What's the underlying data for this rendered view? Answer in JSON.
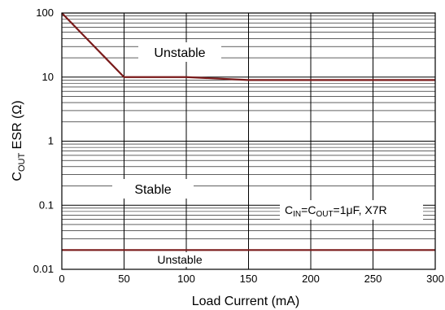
{
  "chart_data": {
    "type": "line",
    "xlabel": "Load Current (mA)",
    "ylabel_main": "C",
    "ylabel_sub": "OUT",
    "ylabel_rest": " ESR (Ω)",
    "x_ticks": [
      "0",
      "50",
      "100",
      "150",
      "200",
      "250",
      "300"
    ],
    "x_tick_values": [
      0,
      50,
      100,
      150,
      200,
      250,
      300
    ],
    "y_ticks": [
      "0.01",
      "0.1",
      "1",
      "10",
      "100"
    ],
    "y_tick_values": [
      0.01,
      0.1,
      1,
      10,
      100
    ],
    "xlim": [
      0,
      300
    ],
    "ylim": [
      0.01,
      100
    ],
    "y_scale": "log",
    "grid": true,
    "line_color": "#7a1a1a",
    "series": [
      {
        "x": [
          0,
          50,
          100,
          150,
          200,
          250,
          300
        ],
        "y": [
          100,
          10,
          10,
          9,
          9,
          9,
          9
        ]
      },
      {
        "x": [
          0,
          300
        ],
        "y": [
          0.02,
          0.02
        ]
      }
    ],
    "annotations": {
      "unstable_top": "Unstable",
      "stable": "Stable",
      "unstable_bottom": "Unstable",
      "condition": {
        "c1": "C",
        "s1": "IN",
        "eq": "=",
        "c2": "C",
        "s2": "OUT",
        "rest": "=1μF, X7R"
      }
    }
  }
}
